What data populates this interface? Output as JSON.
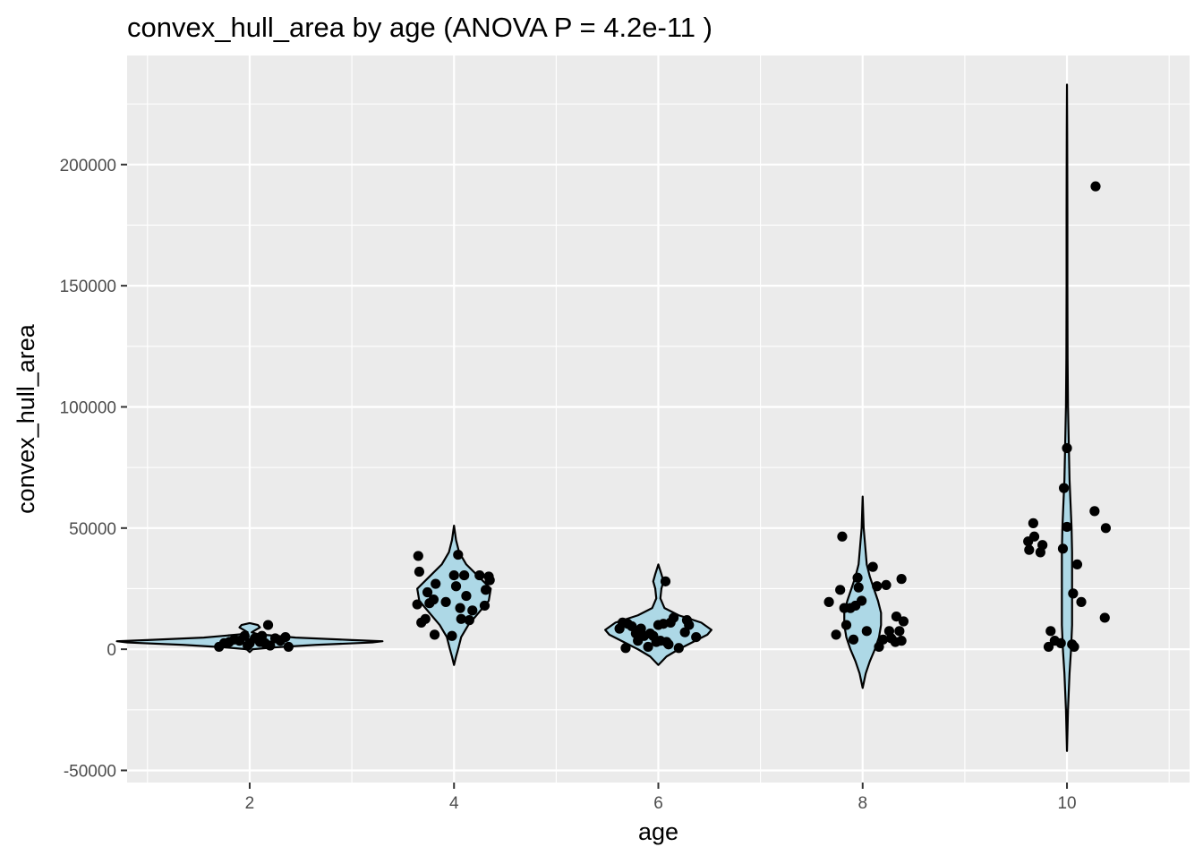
{
  "chart_data": {
    "type": "violin",
    "title": "convex_hull_area by age (ANOVA P = 4.2e-11 )",
    "xlabel": "age",
    "ylabel": "convex_hull_area",
    "xlim": [
      0.8,
      11.2
    ],
    "ylim": [
      -55000,
      245000
    ],
    "x_ticks": [
      2,
      4,
      6,
      8,
      10
    ],
    "x_tick_labels": [
      "2",
      "4",
      "6",
      "8",
      "10"
    ],
    "y_ticks": [
      -50000,
      0,
      50000,
      100000,
      150000,
      200000
    ],
    "y_tick_labels": [
      "-50000",
      "0",
      "50000",
      "100000",
      "150000",
      "200000"
    ],
    "grid": true,
    "legend": "none",
    "colors": {
      "panel_background": "#ebebeb",
      "grid": "#ffffff",
      "violin_fill": "#add8e6",
      "violin_outline": "#000000",
      "points": "#000000"
    },
    "violins": [
      {
        "x": 2,
        "profile": [
          [
            -1200,
            0.0
          ],
          [
            0,
            0.03
          ],
          [
            800,
            0.25
          ],
          [
            1800,
            0.65
          ],
          [
            2800,
            1.2
          ],
          [
            3300,
            1.3
          ],
          [
            3800,
            1.0
          ],
          [
            4800,
            0.45
          ],
          [
            6200,
            0.08
          ],
          [
            7000,
            0.02
          ],
          [
            8000,
            0.06
          ],
          [
            9000,
            0.1
          ],
          [
            10000,
            0.08
          ],
          [
            10800,
            0.0
          ]
        ]
      },
      {
        "x": 4,
        "profile": [
          [
            -6500,
            0.0
          ],
          [
            -3000,
            0.02
          ],
          [
            0,
            0.04
          ],
          [
            5000,
            0.07
          ],
          [
            10000,
            0.14
          ],
          [
            15000,
            0.24
          ],
          [
            20000,
            0.34
          ],
          [
            25000,
            0.36
          ],
          [
            30000,
            0.24
          ],
          [
            35000,
            0.12
          ],
          [
            40000,
            0.05
          ],
          [
            45000,
            0.02
          ],
          [
            51000,
            0.0
          ]
        ]
      },
      {
        "x": 6,
        "profile": [
          [
            -6500,
            0.0
          ],
          [
            -3000,
            0.08
          ],
          [
            0,
            0.2
          ],
          [
            3000,
            0.34
          ],
          [
            6000,
            0.48
          ],
          [
            8000,
            0.52
          ],
          [
            11000,
            0.42
          ],
          [
            14000,
            0.2
          ],
          [
            17000,
            0.06
          ],
          [
            21000,
            0.02
          ],
          [
            25000,
            0.03
          ],
          [
            28000,
            0.05
          ],
          [
            31000,
            0.03
          ],
          [
            35000,
            0.0
          ]
        ]
      },
      {
        "x": 8,
        "profile": [
          [
            -16000,
            0.0
          ],
          [
            -10000,
            0.03
          ],
          [
            -5000,
            0.07
          ],
          [
            0,
            0.12
          ],
          [
            5000,
            0.16
          ],
          [
            10000,
            0.18
          ],
          [
            15000,
            0.18
          ],
          [
            20000,
            0.15
          ],
          [
            25000,
            0.11
          ],
          [
            30000,
            0.07
          ],
          [
            35000,
            0.04
          ],
          [
            40000,
            0.03
          ],
          [
            45000,
            0.02
          ],
          [
            50000,
            0.01
          ],
          [
            63000,
            0.0
          ]
        ]
      },
      {
        "x": 10,
        "profile": [
          [
            -42000,
            0.0
          ],
          [
            -25000,
            0.01
          ],
          [
            -10000,
            0.025
          ],
          [
            0,
            0.04
          ],
          [
            10000,
            0.05
          ],
          [
            20000,
            0.05
          ],
          [
            30000,
            0.05
          ],
          [
            40000,
            0.05
          ],
          [
            50000,
            0.045
          ],
          [
            60000,
            0.035
          ],
          [
            70000,
            0.025
          ],
          [
            80000,
            0.02
          ],
          [
            90000,
            0.015
          ],
          [
            100000,
            0.01
          ],
          [
            120000,
            0.006
          ],
          [
            150000,
            0.004
          ],
          [
            180000,
            0.004
          ],
          [
            200000,
            0.003
          ],
          [
            215000,
            0.002
          ],
          [
            233000,
            0.0
          ]
        ]
      }
    ],
    "points": [
      {
        "x": 1.7,
        "y": 1000
      },
      {
        "x": 1.75,
        "y": 2500
      },
      {
        "x": 1.8,
        "y": 3000
      },
      {
        "x": 1.85,
        "y": 4000
      },
      {
        "x": 1.9,
        "y": 3500
      },
      {
        "x": 1.95,
        "y": 5500
      },
      {
        "x": 2.0,
        "y": 2500
      },
      {
        "x": 1.98,
        "y": 1500
      },
      {
        "x": 2.05,
        "y": 4500
      },
      {
        "x": 2.1,
        "y": 3000
      },
      {
        "x": 2.15,
        "y": 2500
      },
      {
        "x": 2.18,
        "y": 10000
      },
      {
        "x": 2.2,
        "y": 1500
      },
      {
        "x": 2.25,
        "y": 4500
      },
      {
        "x": 2.3,
        "y": 3500
      },
      {
        "x": 2.35,
        "y": 5000
      },
      {
        "x": 2.38,
        "y": 1000
      },
      {
        "x": 2.12,
        "y": 5500
      },
      {
        "x": 3.65,
        "y": 38500
      },
      {
        "x": 3.66,
        "y": 32000
      },
      {
        "x": 3.64,
        "y": 18500
      },
      {
        "x": 3.68,
        "y": 11000
      },
      {
        "x": 3.72,
        "y": 12500
      },
      {
        "x": 3.74,
        "y": 23500
      },
      {
        "x": 3.76,
        "y": 19000
      },
      {
        "x": 3.8,
        "y": 20500
      },
      {
        "x": 3.82,
        "y": 27000
      },
      {
        "x": 3.81,
        "y": 6000
      },
      {
        "x": 3.92,
        "y": 19500
      },
      {
        "x": 3.98,
        "y": 5500
      },
      {
        "x": 4.0,
        "y": 30500
      },
      {
        "x": 4.02,
        "y": 26000
      },
      {
        "x": 4.04,
        "y": 39000
      },
      {
        "x": 4.06,
        "y": 17000
      },
      {
        "x": 4.07,
        "y": 12500
      },
      {
        "x": 4.1,
        "y": 30500
      },
      {
        "x": 4.12,
        "y": 22000
      },
      {
        "x": 4.15,
        "y": 12000
      },
      {
        "x": 4.18,
        "y": 16000
      },
      {
        "x": 4.25,
        "y": 30500
      },
      {
        "x": 4.3,
        "y": 18000
      },
      {
        "x": 4.31,
        "y": 24500
      },
      {
        "x": 4.34,
        "y": 30000
      },
      {
        "x": 4.35,
        "y": 28500
      },
      {
        "x": 5.62,
        "y": 8500
      },
      {
        "x": 5.65,
        "y": 11000
      },
      {
        "x": 5.68,
        "y": 500
      },
      {
        "x": 5.7,
        "y": 10500
      },
      {
        "x": 5.74,
        "y": 9500
      },
      {
        "x": 5.78,
        "y": 6500
      },
      {
        "x": 5.8,
        "y": 3500
      },
      {
        "x": 5.83,
        "y": 8500
      },
      {
        "x": 5.86,
        "y": 5500
      },
      {
        "x": 5.9,
        "y": 1000
      },
      {
        "x": 5.92,
        "y": 6500
      },
      {
        "x": 5.95,
        "y": 5500
      },
      {
        "x": 5.98,
        "y": 3000
      },
      {
        "x": 6.0,
        "y": 10000
      },
      {
        "x": 6.02,
        "y": 3500
      },
      {
        "x": 6.05,
        "y": 10500
      },
      {
        "x": 6.08,
        "y": 3000
      },
      {
        "x": 6.07,
        "y": 28000
      },
      {
        "x": 6.1,
        "y": 2000
      },
      {
        "x": 6.12,
        "y": 11000
      },
      {
        "x": 6.15,
        "y": 13000
      },
      {
        "x": 6.2,
        "y": 500
      },
      {
        "x": 6.26,
        "y": 7000
      },
      {
        "x": 6.28,
        "y": 12000
      },
      {
        "x": 6.3,
        "y": 10000
      },
      {
        "x": 6.37,
        "y": 5000
      },
      {
        "x": 7.67,
        "y": 19500
      },
      {
        "x": 7.74,
        "y": 6000
      },
      {
        "x": 7.78,
        "y": 24500
      },
      {
        "x": 7.8,
        "y": 46500
      },
      {
        "x": 7.82,
        "y": 17000
      },
      {
        "x": 7.84,
        "y": 10000
      },
      {
        "x": 7.88,
        "y": 17000
      },
      {
        "x": 7.91,
        "y": 4000
      },
      {
        "x": 7.93,
        "y": 18000
      },
      {
        "x": 7.95,
        "y": 29500
      },
      {
        "x": 7.96,
        "y": 25500
      },
      {
        "x": 7.99,
        "y": 20000
      },
      {
        "x": 8.04,
        "y": 7500
      },
      {
        "x": 8.1,
        "y": 34000
      },
      {
        "x": 8.14,
        "y": 26000
      },
      {
        "x": 8.16,
        "y": 1000
      },
      {
        "x": 8.2,
        "y": 4000
      },
      {
        "x": 8.23,
        "y": 26500
      },
      {
        "x": 8.26,
        "y": 7500
      },
      {
        "x": 8.28,
        "y": 4500
      },
      {
        "x": 8.32,
        "y": 3000
      },
      {
        "x": 8.33,
        "y": 13500
      },
      {
        "x": 8.36,
        "y": 7500
      },
      {
        "x": 8.38,
        "y": 3500
      },
      {
        "x": 8.4,
        "y": 11500
      },
      {
        "x": 8.38,
        "y": 29000
      },
      {
        "x": 9.62,
        "y": 44500
      },
      {
        "x": 9.63,
        "y": 41000
      },
      {
        "x": 9.67,
        "y": 52000
      },
      {
        "x": 9.68,
        "y": 46500
      },
      {
        "x": 9.74,
        "y": 40000
      },
      {
        "x": 9.76,
        "y": 43000
      },
      {
        "x": 9.82,
        "y": 1000
      },
      {
        "x": 9.84,
        "y": 7500
      },
      {
        "x": 9.88,
        "y": 3500
      },
      {
        "x": 9.94,
        "y": 2500
      },
      {
        "x": 9.96,
        "y": 41500
      },
      {
        "x": 9.97,
        "y": 66500
      },
      {
        "x": 10.0,
        "y": 83000
      },
      {
        "x": 10.0,
        "y": 50500
      },
      {
        "x": 10.05,
        "y": 2000
      },
      {
        "x": 10.06,
        "y": 23000
      },
      {
        "x": 10.07,
        "y": 1000
      },
      {
        "x": 10.1,
        "y": 35000
      },
      {
        "x": 10.14,
        "y": 19500
      },
      {
        "x": 10.27,
        "y": 57000
      },
      {
        "x": 10.28,
        "y": 191000
      },
      {
        "x": 10.38,
        "y": 50000
      },
      {
        "x": 10.37,
        "y": 13000
      }
    ]
  }
}
